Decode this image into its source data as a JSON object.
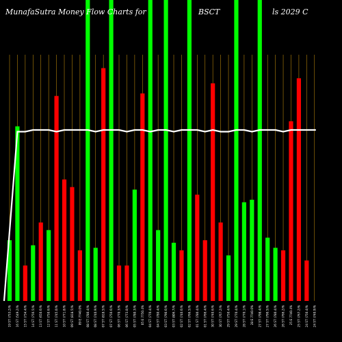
{
  "title": {
    "left": "MunafaSutra  Money Flow  Charts for",
    "middle": "BSCT",
    "right": "ls 2029 C"
  },
  "colors": {
    "background": "#000000",
    "up": "#00ff00",
    "down": "#ff0000",
    "grid": "#b8860b",
    "line": "#ffffff"
  },
  "chart_data": {
    "type": "bar",
    "ylim": [
      0,
      100
    ],
    "categories": [
      "19 ST (753.2)%",
      "16 ST (549.2)%",
      "15 ST (734.4)%",
      "14 ST (756.5)%",
      "13 ST (650.6)%",
      "12 ST (750.6)%",
      "11 ST (745.0)%",
      "10 ST (771.8)%",
      "09 ST (818.5)%",
      "09 E 7740.0%",
      "08 ST (780.4)%",
      "08 ST (740.9)%",
      "07 ST (818.5)%",
      "07 ST (750.6)%",
      "06 ST (770.3)%",
      "06 ST (773.0)%",
      "05 ST (780.3)%",
      "05 E 7750.4%",
      "04 ST (770.4)%",
      "04 ST (780.4)%",
      "03 ST (790.6)%",
      "03 ST (806.7)%",
      "02 ST (740.6)%",
      "02 ST (766.5)%",
      "01 ST (780.4)%",
      "01 ST (766.4)%",
      "30 ST (740.6)%",
      "30 ST (767.2)%",
      "29 ST (750.4)%",
      "29 ST (770.4)%",
      "28 ST (770.1)%",
      "28 E 7740.0%",
      "27 ST (798.4)%",
      "27 ST (790.5)%",
      "26 ST (780.4)%",
      "26 ST (766.2)%",
      "25 E 7740.4%",
      "25 ST (767.2)%",
      "24 ST (750.4)%",
      "24 ST (740.9)%"
    ],
    "values": [
      24,
      69,
      14,
      22,
      31,
      28,
      81,
      48,
      45,
      20,
      100,
      21,
      92,
      100,
      14,
      14,
      44,
      82,
      100,
      28,
      100,
      23,
      20,
      100,
      42,
      24,
      86,
      31,
      18,
      100,
      39,
      40,
      100,
      25,
      21,
      20,
      71,
      88,
      16,
      0
    ],
    "colors": [
      "green",
      "green",
      "red",
      "green",
      "red",
      "green",
      "red",
      "red",
      "red",
      "red",
      "green",
      "green",
      "red",
      "green",
      "red",
      "red",
      "green",
      "red",
      "green",
      "green",
      "green",
      "green",
      "red",
      "green",
      "red",
      "red",
      "red",
      "red",
      "green",
      "green",
      "green",
      "green",
      "green",
      "green",
      "green",
      "red",
      "red",
      "red",
      "red",
      "red"
    ],
    "line": [
      0,
      99,
      99,
      100,
      100,
      100,
      99,
      100,
      100,
      100,
      100,
      99,
      100,
      100,
      100,
      99,
      100,
      100,
      99,
      100,
      100,
      99,
      100,
      100,
      100,
      99,
      100,
      99,
      99,
      100,
      100,
      99,
      100,
      100,
      100,
      99,
      100,
      100,
      100,
      100
    ]
  }
}
